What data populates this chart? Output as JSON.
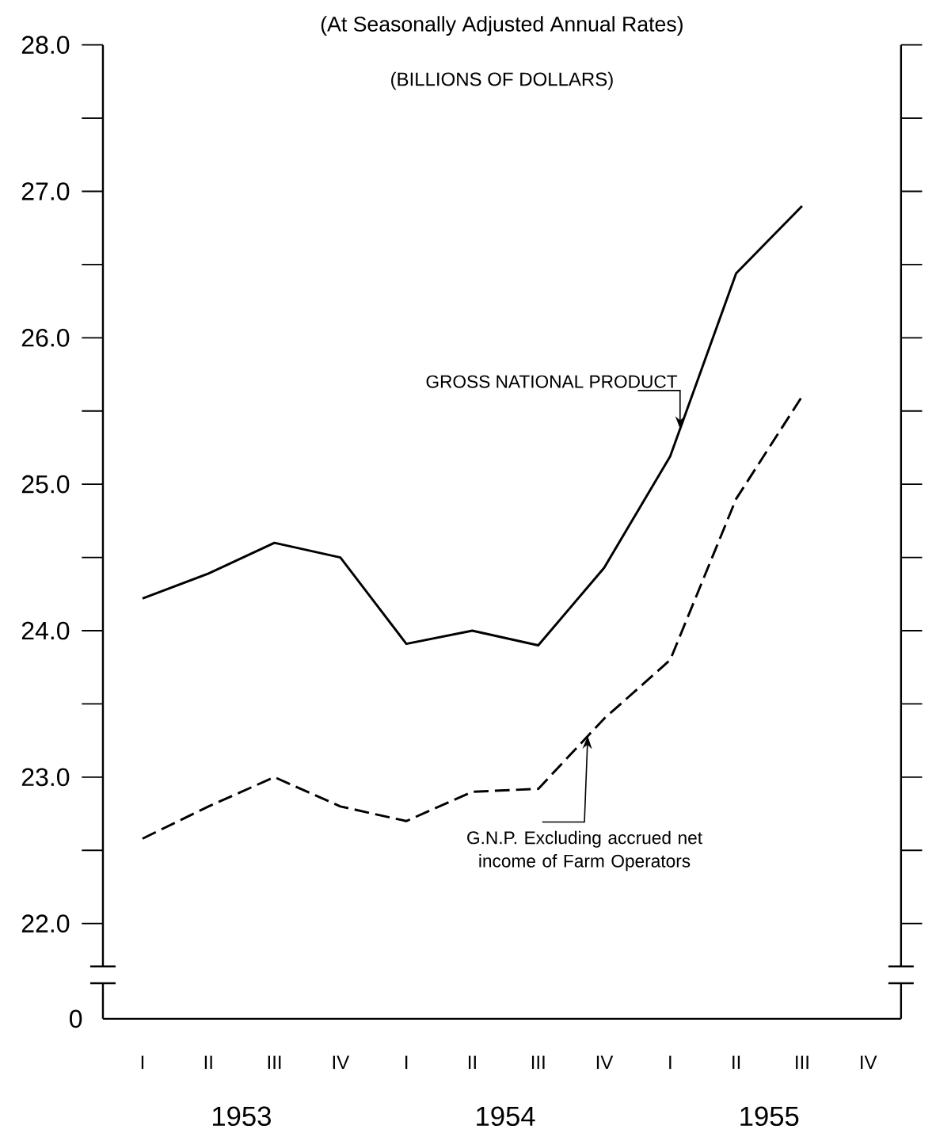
{
  "chart_data": {
    "type": "line",
    "title": "(At Seasonally Adjusted Annual Rates)",
    "subtitle": "(BILLIONS OF DOLLARS)",
    "categories": [
      "I",
      "II",
      "III",
      "IV",
      "I",
      "II",
      "III",
      "IV",
      "I",
      "II",
      "III",
      "IV"
    ],
    "series": [
      {
        "name": "GROSS NATIONAL PRODUCT",
        "color": "#000000",
        "line_style": "solid",
        "values": [
          24.22,
          24.39,
          24.6,
          24.5,
          23.91,
          24.0,
          23.9,
          24.43,
          25.19,
          26.44,
          26.9,
          null
        ]
      },
      {
        "name": "G.N.P. Excluding accrued net income of Farm Operators",
        "color": "#000000",
        "line_style": "dashed",
        "values": [
          22.58,
          22.8,
          23.0,
          22.8,
          22.7,
          22.9,
          22.92,
          23.4,
          23.8,
          24.9,
          25.6,
          null
        ]
      }
    ],
    "ylim": [
      21.35,
      28.0
    ],
    "yticks": [
      {
        "value": 22,
        "label": "22.0"
      },
      {
        "value": 22.5,
        "label": null
      },
      {
        "value": 23,
        "label": "23.0"
      },
      {
        "value": 23.5,
        "label": null
      },
      {
        "value": 24,
        "label": "24.0"
      },
      {
        "value": 24.5,
        "label": null
      },
      {
        "value": 25,
        "label": "25.0"
      },
      {
        "value": 25.5,
        "label": null
      },
      {
        "value": 26,
        "label": "26.0"
      },
      {
        "value": 26.5,
        "label": null
      },
      {
        "value": 27,
        "label": "27.0"
      },
      {
        "value": 27.5,
        "label": null
      },
      {
        "value": 28,
        "label": "28.0"
      }
    ],
    "annotations": [
      "0",
      "1953",
      "1954",
      "1955"
    ]
  }
}
